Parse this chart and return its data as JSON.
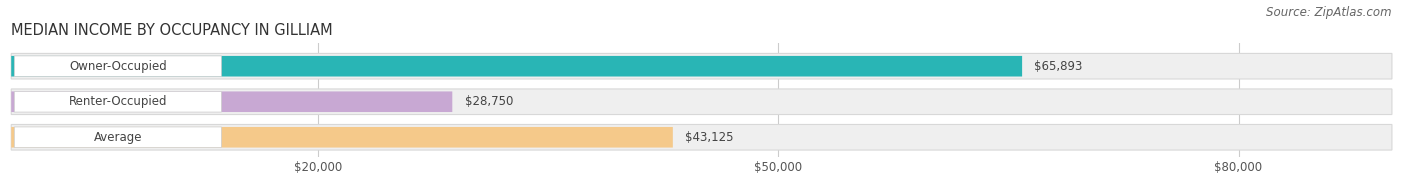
{
  "title": "MEDIAN INCOME BY OCCUPANCY IN GILLIAM",
  "source": "Source: ZipAtlas.com",
  "categories": [
    "Owner-Occupied",
    "Renter-Occupied",
    "Average"
  ],
  "values": [
    65893,
    28750,
    43125
  ],
  "bar_colors": [
    "#29b5b5",
    "#c8a8d3",
    "#f5c98a"
  ],
  "bar_bg_colors": [
    "#efefef",
    "#efefef",
    "#efefef"
  ],
  "value_labels": [
    "$65,893",
    "$28,750",
    "$43,125"
  ],
  "xlim": [
    0,
    90000
  ],
  "xticks": [
    20000,
    50000,
    80000
  ],
  "xtick_labels": [
    "$20,000",
    "$50,000",
    "$80,000"
  ],
  "title_fontsize": 10.5,
  "source_fontsize": 8.5,
  "label_fontsize": 8.5,
  "value_fontsize": 8.5,
  "background_color": "#ffffff"
}
